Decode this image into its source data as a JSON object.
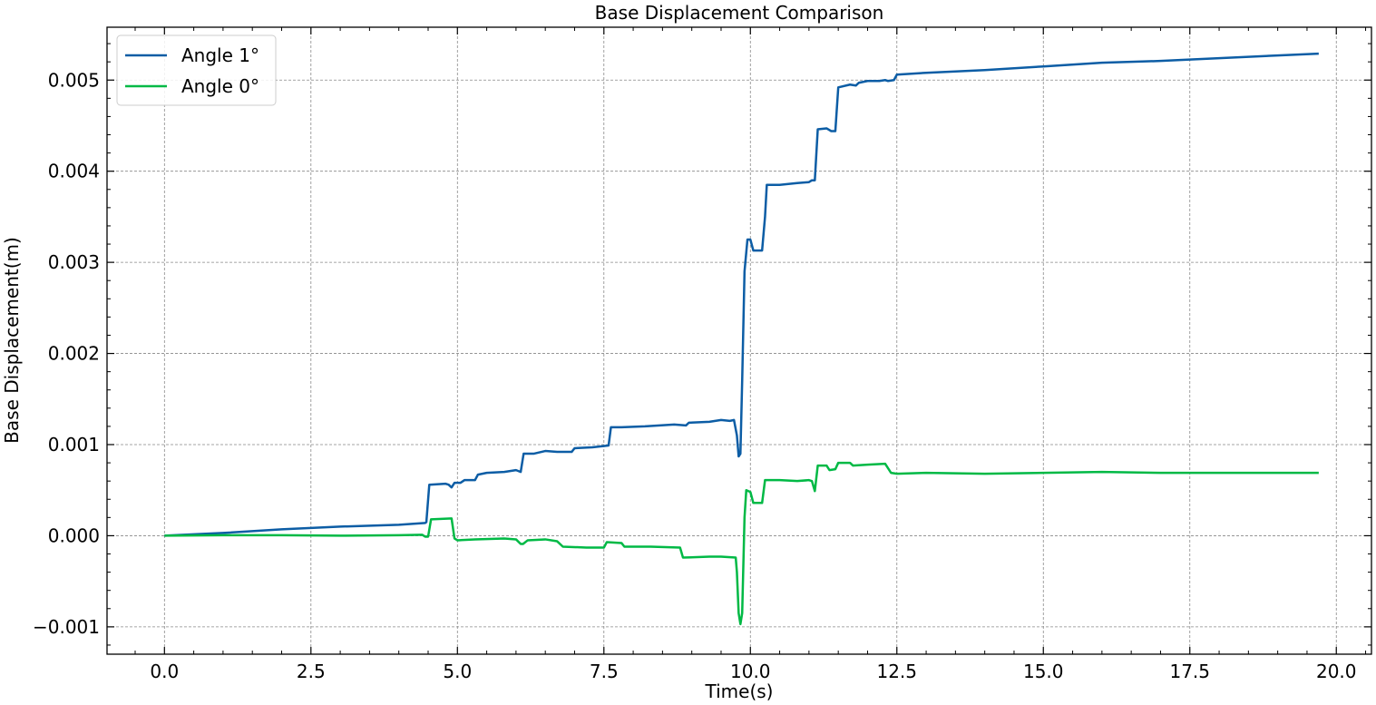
{
  "chart_data": {
    "type": "line",
    "title": "Base Displacement Comparison",
    "xlabel": "Time(s)",
    "ylabel": "Base Displacement(m)",
    "xlim": [
      -0.98,
      20.6
    ],
    "ylim": [
      -0.0013,
      0.00558
    ],
    "x_ticks": [
      0.0,
      2.5,
      5.0,
      7.5,
      10.0,
      12.5,
      15.0,
      17.5,
      20.0
    ],
    "x_tick_labels": [
      "0.0",
      "2.5",
      "5.0",
      "7.5",
      "10.0",
      "12.5",
      "15.0",
      "17.5",
      "20.0"
    ],
    "y_ticks": [
      -0.001,
      0.0,
      0.001,
      0.002,
      0.003,
      0.004,
      0.005
    ],
    "y_tick_labels": [
      "−0.001",
      "0.000",
      "0.001",
      "0.002",
      "0.003",
      "0.004",
      "0.005"
    ],
    "grid": true,
    "legend_position": "top-left",
    "series": [
      {
        "name": "Angle 1°",
        "color": "#0C5DA5",
        "points": [
          [
            0.0,
            0.0
          ],
          [
            1.0,
            3e-05
          ],
          [
            2.0,
            7e-05
          ],
          [
            3.0,
            0.0001
          ],
          [
            4.0,
            0.00012
          ],
          [
            4.45,
            0.00014
          ],
          [
            4.47,
            0.00015
          ],
          [
            4.52,
            0.00056
          ],
          [
            4.8,
            0.00057
          ],
          [
            4.85,
            0.00056
          ],
          [
            4.9,
            0.00053
          ],
          [
            4.95,
            0.00058
          ],
          [
            5.05,
            0.00058
          ],
          [
            5.12,
            0.00061
          ],
          [
            5.3,
            0.00061
          ],
          [
            5.35,
            0.00067
          ],
          [
            5.5,
            0.00069
          ],
          [
            5.8,
            0.0007
          ],
          [
            6.0,
            0.00072
          ],
          [
            6.08,
            0.0007
          ],
          [
            6.13,
            0.0009
          ],
          [
            6.3,
            0.0009
          ],
          [
            6.5,
            0.00093
          ],
          [
            6.7,
            0.00092
          ],
          [
            6.95,
            0.00092
          ],
          [
            7.0,
            0.00096
          ],
          [
            7.3,
            0.00097
          ],
          [
            7.58,
            0.00099
          ],
          [
            7.62,
            0.00119
          ],
          [
            7.8,
            0.00119
          ],
          [
            8.2,
            0.0012
          ],
          [
            8.7,
            0.00122
          ],
          [
            8.9,
            0.00121
          ],
          [
            8.95,
            0.00124
          ],
          [
            9.3,
            0.00125
          ],
          [
            9.5,
            0.00127
          ],
          [
            9.65,
            0.00126
          ],
          [
            9.72,
            0.00127
          ],
          [
            9.77,
            0.0011
          ],
          [
            9.8,
            0.00087
          ],
          [
            9.83,
            0.0009
          ],
          [
            9.86,
            0.0017
          ],
          [
            9.9,
            0.0029
          ],
          [
            9.95,
            0.00325
          ],
          [
            10.0,
            0.00325
          ],
          [
            10.05,
            0.00313
          ],
          [
            10.2,
            0.00313
          ],
          [
            10.25,
            0.0035
          ],
          [
            10.28,
            0.00385
          ],
          [
            10.5,
            0.00385
          ],
          [
            10.8,
            0.00387
          ],
          [
            11.0,
            0.00388
          ],
          [
            11.05,
            0.0039
          ],
          [
            11.1,
            0.0039
          ],
          [
            11.15,
            0.00446
          ],
          [
            11.3,
            0.00447
          ],
          [
            11.38,
            0.00444
          ],
          [
            11.45,
            0.00444
          ],
          [
            11.5,
            0.00492
          ],
          [
            11.7,
            0.00495
          ],
          [
            11.8,
            0.00494
          ],
          [
            11.85,
            0.00497
          ],
          [
            12.0,
            0.00499
          ],
          [
            12.2,
            0.00499
          ],
          [
            12.3,
            0.005
          ],
          [
            12.35,
            0.00499
          ],
          [
            12.45,
            0.005
          ],
          [
            12.5,
            0.00506
          ],
          [
            13.0,
            0.00508
          ],
          [
            14.0,
            0.00511
          ],
          [
            15.0,
            0.00515
          ],
          [
            16.0,
            0.00519
          ],
          [
            17.0,
            0.00521
          ],
          [
            18.0,
            0.00524
          ],
          [
            19.0,
            0.00527
          ],
          [
            19.7,
            0.00529
          ]
        ]
      },
      {
        "name": "Angle 0°",
        "color": "#00B945",
        "points": [
          [
            0.0,
            0.0
          ],
          [
            1.0,
            5e-06
          ],
          [
            2.0,
            5e-06
          ],
          [
            3.0,
            0.0
          ],
          [
            4.0,
            5e-06
          ],
          [
            4.4,
            1e-05
          ],
          [
            4.45,
            -1e-05
          ],
          [
            4.5,
            -1e-05
          ],
          [
            4.55,
            0.00018
          ],
          [
            4.9,
            0.00019
          ],
          [
            4.95,
            -3e-05
          ],
          [
            5.0,
            -5e-05
          ],
          [
            5.3,
            -4e-05
          ],
          [
            5.8,
            -3e-05
          ],
          [
            6.0,
            -4e-05
          ],
          [
            6.08,
            -9e-05
          ],
          [
            6.12,
            -9e-05
          ],
          [
            6.2,
            -5e-05
          ],
          [
            6.5,
            -4e-05
          ],
          [
            6.7,
            -6e-05
          ],
          [
            6.8,
            -0.00012
          ],
          [
            7.2,
            -0.00013
          ],
          [
            7.5,
            -0.00013
          ],
          [
            7.55,
            -7e-05
          ],
          [
            7.8,
            -8e-05
          ],
          [
            7.85,
            -0.00012
          ],
          [
            8.3,
            -0.00012
          ],
          [
            8.8,
            -0.00013
          ],
          [
            8.85,
            -0.00024
          ],
          [
            9.3,
            -0.00023
          ],
          [
            9.5,
            -0.00023
          ],
          [
            9.75,
            -0.00024
          ],
          [
            9.77,
            -0.0004
          ],
          [
            9.8,
            -0.00085
          ],
          [
            9.83,
            -0.00097
          ],
          [
            9.86,
            -0.00085
          ],
          [
            9.9,
            0.0002
          ],
          [
            9.93,
            0.0005
          ],
          [
            10.0,
            0.00048
          ],
          [
            10.05,
            0.00036
          ],
          [
            10.2,
            0.00036
          ],
          [
            10.25,
            0.00061
          ],
          [
            10.5,
            0.00061
          ],
          [
            10.8,
            0.0006
          ],
          [
            11.0,
            0.00061
          ],
          [
            11.05,
            0.0006
          ],
          [
            11.1,
            0.00049
          ],
          [
            11.15,
            0.00077
          ],
          [
            11.3,
            0.00077
          ],
          [
            11.35,
            0.00072
          ],
          [
            11.45,
            0.00073
          ],
          [
            11.5,
            0.0008
          ],
          [
            11.7,
            0.0008
          ],
          [
            11.75,
            0.00077
          ],
          [
            12.0,
            0.00078
          ],
          [
            12.3,
            0.00079
          ],
          [
            12.4,
            0.00069
          ],
          [
            12.5,
            0.00068
          ],
          [
            13.0,
            0.00069
          ],
          [
            14.0,
            0.00068
          ],
          [
            15.0,
            0.00069
          ],
          [
            16.0,
            0.0007
          ],
          [
            17.0,
            0.00069
          ],
          [
            18.0,
            0.00069
          ],
          [
            19.0,
            0.00069
          ],
          [
            19.7,
            0.00069
          ]
        ]
      }
    ]
  }
}
